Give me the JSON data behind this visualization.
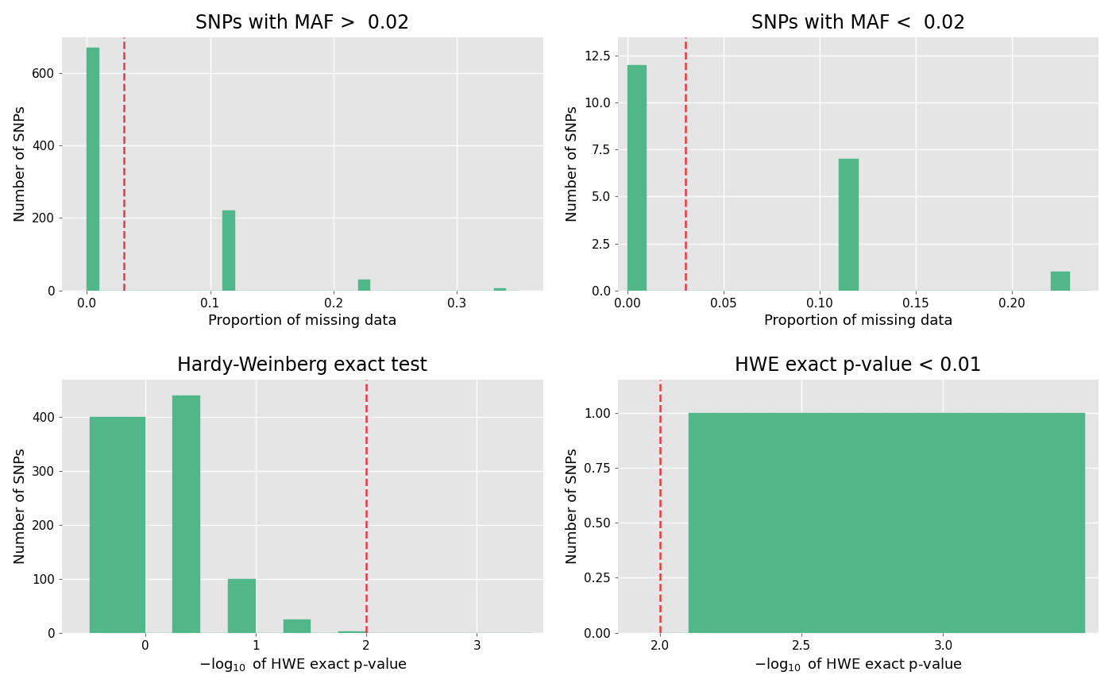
{
  "panel1": {
    "title": "SNPs with MAF >  0.02",
    "xlabel": "Proportion of missing data",
    "ylabel": "Number of SNPs",
    "bar_edges": [
      0.0,
      0.01,
      0.02,
      0.03,
      0.04,
      0.05,
      0.06,
      0.07,
      0.08,
      0.09,
      0.1,
      0.11,
      0.12,
      0.13,
      0.14,
      0.15,
      0.16,
      0.17,
      0.18,
      0.19,
      0.2,
      0.21,
      0.22,
      0.23,
      0.24,
      0.25,
      0.26,
      0.27,
      0.28,
      0.29,
      0.3,
      0.31,
      0.32,
      0.33,
      0.34,
      0.35
    ],
    "bar_heights": [
      670,
      0,
      0,
      0,
      0,
      0,
      0,
      0,
      0,
      0,
      0,
      220,
      0,
      0,
      0,
      0,
      0,
      0,
      0,
      0,
      0,
      0,
      30,
      0,
      0,
      0,
      0,
      0,
      0,
      0,
      0,
      0,
      0,
      5,
      0
    ],
    "vline": 0.03,
    "xlim": [
      -0.02,
      0.37
    ],
    "ylim": [
      0,
      700
    ],
    "yticks": [
      0,
      200,
      400,
      600
    ],
    "xticks": [
      0.0,
      0.1,
      0.2,
      0.3
    ],
    "bar_color": "#52b788",
    "vline_color": "#e63946",
    "bg_color": "#e5e5e5"
  },
  "panel2": {
    "title": "SNPs with MAF <  0.02",
    "xlabel": "Proportion of missing data",
    "ylabel": "Number of SNPs",
    "bar_edges": [
      0.0,
      0.01,
      0.02,
      0.03,
      0.04,
      0.05,
      0.06,
      0.07,
      0.08,
      0.09,
      0.1,
      0.11,
      0.12,
      0.13,
      0.14,
      0.15,
      0.16,
      0.17,
      0.18,
      0.19,
      0.2,
      0.21,
      0.22,
      0.23,
      0.24
    ],
    "bar_heights": [
      12,
      0,
      0,
      0,
      0,
      0,
      0,
      0,
      0,
      0,
      0,
      7,
      0,
      0,
      0,
      0,
      0,
      0,
      0,
      0,
      0,
      0,
      1,
      0
    ],
    "vline": 0.03,
    "xlim": [
      -0.005,
      0.245
    ],
    "ylim": [
      0,
      13.5
    ],
    "yticks": [
      0.0,
      2.5,
      5.0,
      7.5,
      10.0,
      12.5
    ],
    "xticks": [
      0.0,
      0.05,
      0.1,
      0.15,
      0.2
    ],
    "bar_color": "#52b788",
    "vline_color": "#e63946",
    "bg_color": "#e5e5e5"
  },
  "panel3": {
    "title": "Hardy-Weinberg exact test",
    "xlabel": "-log10 of HWE exact p-value",
    "ylabel": "Number of SNPs",
    "bar_edges": [
      -0.5,
      0.0,
      0.25,
      0.5,
      0.75,
      1.0,
      1.25,
      1.5,
      1.75,
      2.0,
      2.25,
      2.5,
      2.75,
      3.0,
      3.25,
      3.5
    ],
    "bar_heights": [
      400,
      0,
      440,
      0,
      100,
      0,
      25,
      0,
      2,
      0,
      0,
      0,
      0,
      0,
      0
    ],
    "vline": 2.0,
    "xlim": [
      -0.75,
      3.6
    ],
    "ylim": [
      0,
      470
    ],
    "yticks": [
      0,
      100,
      200,
      300,
      400
    ],
    "xticks": [
      0,
      1,
      2,
      3
    ],
    "bar_color": "#52b788",
    "vline_color": "#e63946",
    "bg_color": "#e5e5e5"
  },
  "panel4": {
    "title": "HWE exact p-value < 0.01",
    "xlabel": "-log10 of HWE exact p-value",
    "ylabel": "Number of SNPs",
    "bar_edges": [
      2.0,
      2.1,
      2.2,
      2.3,
      2.4,
      2.5,
      2.6,
      2.7,
      2.8,
      2.9,
      3.0,
      3.1,
      3.2,
      3.3,
      3.4,
      3.5
    ],
    "bar_heights": [
      0,
      1.0,
      1.0,
      1.0,
      1.0,
      1.0,
      1.0,
      1.0,
      1.0,
      1.0,
      1.0,
      1.0,
      1.0,
      1.0,
      1.0
    ],
    "vline": 2.0,
    "xlim": [
      1.85,
      3.55
    ],
    "ylim": [
      0,
      1.15
    ],
    "yticks": [
      0.0,
      0.25,
      0.5,
      0.75,
      1.0
    ],
    "xticks": [
      2.0,
      2.5,
      3.0
    ],
    "bar_color": "#52b788",
    "vline_color": "#e63946",
    "bg_color": "#e5e5e5"
  },
  "title_fontsize": 17,
  "label_fontsize": 13,
  "tick_fontsize": 11,
  "fig_bg_color": "#ffffff"
}
